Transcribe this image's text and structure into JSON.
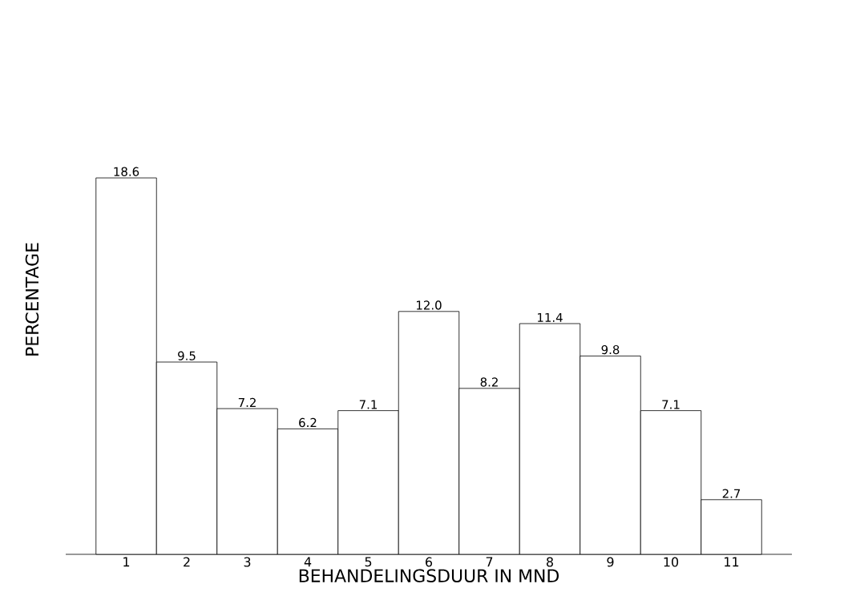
{
  "chart_data": {
    "type": "bar",
    "xlabel": "BEHANDELINGSDUUR IN MND",
    "ylabel": "PERCENTAGE",
    "categories": [
      "1",
      "2",
      "3",
      "4",
      "5",
      "6",
      "7",
      "8",
      "9",
      "10",
      "11"
    ],
    "values": [
      18.6,
      9.5,
      7.2,
      6.2,
      7.1,
      12.0,
      8.2,
      11.4,
      9.8,
      7.1,
      2.7
    ],
    "value_labels": [
      "18.6",
      "9.5",
      "7.2",
      "6.2",
      "7.1",
      "12.0",
      "8.2",
      "11.4",
      "9.8",
      "7.1",
      "2.7"
    ],
    "color": "#000000"
  }
}
